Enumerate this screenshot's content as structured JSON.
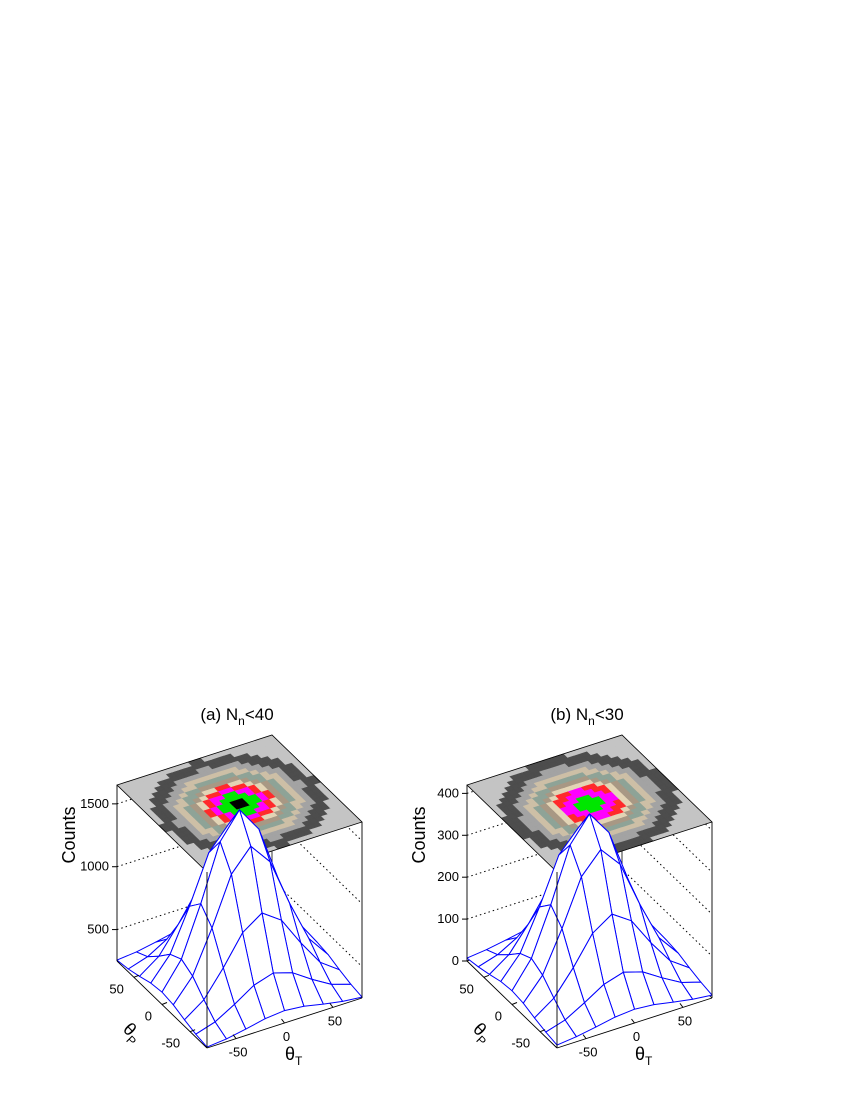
{
  "chart_data": [
    {
      "type": "surface",
      "title": {
        "text": "(a) N",
        "sub": "n",
        "tail": "<40"
      },
      "zlabel": "Counts",
      "xlabel": {
        "text": "θ",
        "sub": "T"
      },
      "ylabel": {
        "text": "θ",
        "sub": "P"
      },
      "x": [
        -80,
        -60,
        -40,
        -20,
        0,
        20,
        40,
        60,
        80
      ],
      "y": [
        -80,
        -60,
        -40,
        -20,
        0,
        20,
        40,
        60,
        80
      ],
      "z": [
        [
          257,
          273,
          301,
          334,
          349,
          334,
          301,
          273,
          257
        ],
        [
          273,
          321,
          411,
          513,
          561,
          513,
          411,
          321,
          273
        ],
        [
          301,
          411,
          615,
          845,
          952,
          845,
          615,
          411,
          301
        ],
        [
          334,
          513,
          845,
          1223,
          1396,
          1223,
          845,
          513,
          334
        ],
        [
          349,
          561,
          952,
          1396,
          1600,
          1396,
          952,
          561,
          349
        ],
        [
          334,
          513,
          845,
          1223,
          1396,
          1223,
          845,
          513,
          334
        ],
        [
          301,
          411,
          615,
          845,
          952,
          845,
          615,
          411,
          301
        ],
        [
          273,
          321,
          411,
          513,
          561,
          513,
          411,
          321,
          273
        ],
        [
          257,
          273,
          301,
          334,
          349,
          334,
          301,
          273,
          257
        ]
      ],
      "xlim": [
        -80,
        80
      ],
      "ylim": [
        -80,
        80
      ],
      "zlim": [
        250,
        1650
      ],
      "xticks": [
        -50,
        0,
        50
      ],
      "yticks": [
        -50,
        0,
        50
      ],
      "zticks": [
        500,
        1000,
        1500
      ],
      "color": "#0000ff",
      "palette": [
        "#c4c4c4",
        "#4d4d4d",
        "#a3a3a3",
        "#cdbfa6",
        "#8ea397",
        "#a89884",
        "#e3d4b5",
        "#ff2a2a",
        "#ff00ff",
        "#00e600",
        "#000000"
      ],
      "grid": true
    },
    {
      "type": "surface",
      "title": {
        "text": "(b) N",
        "sub": "n",
        "tail": "<30"
      },
      "zlabel": "Counts",
      "xlabel": {
        "text": "θ",
        "sub": "T"
      },
      "ylabel": {
        "text": "θ",
        "sub": "P"
      },
      "x": [
        -80,
        -60,
        -40,
        -20,
        0,
        20,
        40,
        60,
        80
      ],
      "y": [
        -80,
        -60,
        -40,
        -20,
        0,
        20,
        40,
        60,
        80
      ],
      "z": [
        [
          7,
          12,
          20,
          29,
          33,
          29,
          20,
          12,
          7
        ],
        [
          12,
          26,
          52,
          81,
          95,
          81,
          52,
          26,
          12
        ],
        [
          20,
          52,
          110,
          177,
          208,
          177,
          110,
          52,
          20
        ],
        [
          29,
          81,
          177,
          286,
          336,
          286,
          177,
          81,
          29
        ],
        [
          33,
          95,
          208,
          336,
          395,
          336,
          208,
          95,
          33
        ],
        [
          29,
          81,
          177,
          286,
          336,
          286,
          177,
          81,
          29
        ],
        [
          20,
          52,
          110,
          177,
          208,
          177,
          110,
          52,
          20
        ],
        [
          12,
          26,
          52,
          81,
          95,
          81,
          52,
          26,
          12
        ],
        [
          7,
          12,
          20,
          29,
          33,
          29,
          20,
          12,
          7
        ]
      ],
      "xlim": [
        -80,
        80
      ],
      "ylim": [
        -80,
        80
      ],
      "zlim": [
        0,
        420
      ],
      "xticks": [
        -50,
        0,
        50
      ],
      "yticks": [
        -50,
        0,
        50
      ],
      "zticks": [
        0,
        100,
        200,
        300,
        400
      ],
      "color": "#0000ff",
      "palette": [
        "#c4c4c4",
        "#4d4d4d",
        "#a3a3a3",
        "#cdbfa6",
        "#8ea397",
        "#a89884",
        "#e3d4b5",
        "#ff2a2a",
        "#ff00ff",
        "#00e600",
        "#000000"
      ],
      "grid": true
    }
  ]
}
